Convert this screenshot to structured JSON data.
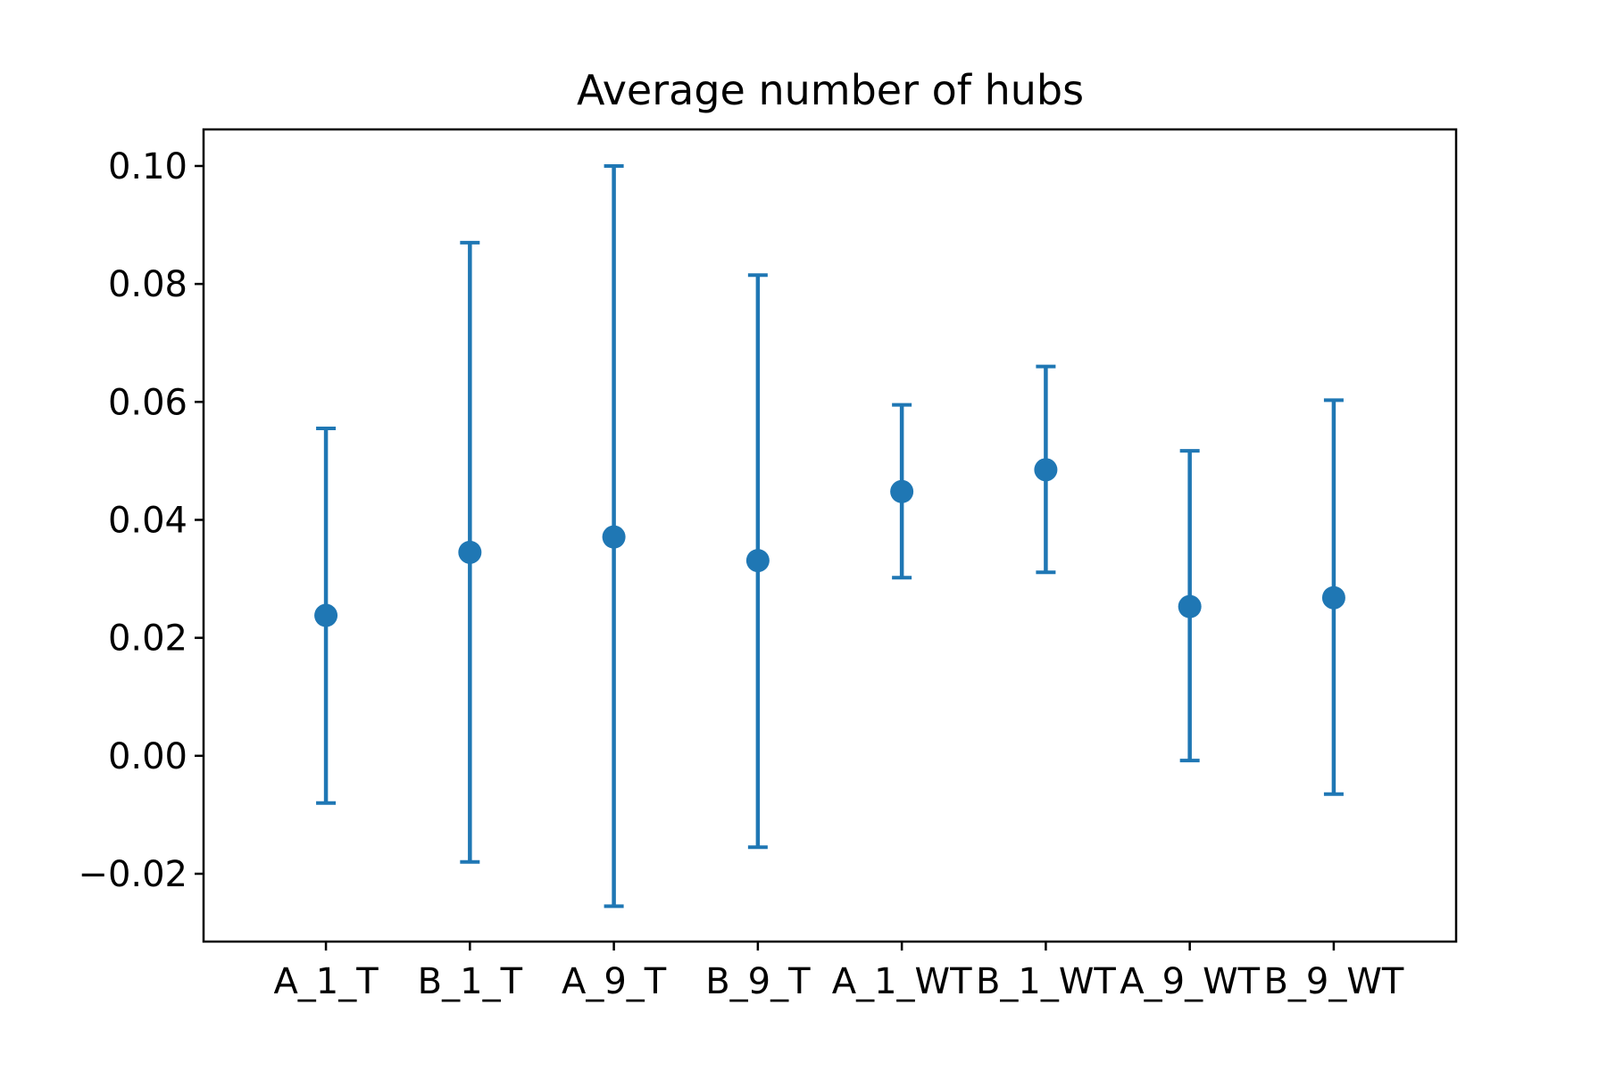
{
  "chart_data": {
    "type": "scatter",
    "title": "Average number of hubs",
    "xlabel": "",
    "ylabel": "",
    "categories": [
      "A_1_T",
      "B_1_T",
      "A_9_T",
      "B_9_T",
      "A_1_WT",
      "B_1_WT",
      "A_9_WT",
      "B_9_WT"
    ],
    "values": [
      0.0238,
      0.0345,
      0.0371,
      0.0331,
      0.0448,
      0.0485,
      0.0253,
      0.0268
    ],
    "error_low": [
      -0.008,
      -0.018,
      -0.0255,
      -0.0155,
      0.0302,
      0.0311,
      -0.0008,
      -0.0065
    ],
    "error_high": [
      0.0555,
      0.087,
      0.1,
      0.0815,
      0.0595,
      0.066,
      0.0517,
      0.0603
    ],
    "ylim": [
      -0.0315,
      0.1062
    ],
    "yticks": [
      -0.02,
      0.0,
      0.02,
      0.04,
      0.06,
      0.08,
      0.1
    ],
    "ytick_labels": [
      "−0.02",
      "0.00",
      "0.02",
      "0.04",
      "0.06",
      "0.08",
      "0.10"
    ],
    "grid": false,
    "legend": "none",
    "color": "#1f77b4"
  }
}
